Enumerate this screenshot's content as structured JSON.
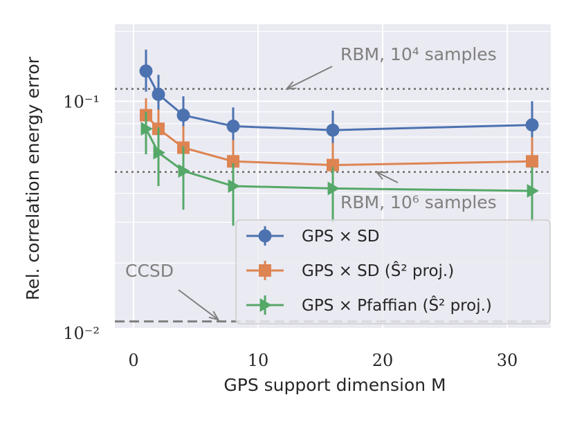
{
  "chart_data": {
    "type": "line",
    "xlabel": "GPS support dimension M",
    "ylabel": "Rel. correlation energy error",
    "xlim": [
      -1.5,
      33.5
    ],
    "ylim": [
      0.0105,
      0.215
    ],
    "yscale": "log",
    "xticks": [
      {
        "value": 0,
        "label": "0"
      },
      {
        "value": 10,
        "label": "10"
      },
      {
        "value": 20,
        "label": "20"
      },
      {
        "value": 30,
        "label": "30"
      }
    ],
    "yticks": [
      {
        "value": 0.1,
        "label": "10⁻¹"
      },
      {
        "value": 0.01,
        "label": "10⁻²"
      }
    ],
    "grid": true,
    "series": [
      {
        "name": "GPS × SD",
        "color": "#4c72b0",
        "marker": "circle",
        "x": [
          1,
          2,
          4,
          8,
          16,
          32
        ],
        "y": [
          0.135,
          0.107,
          0.087,
          0.078,
          0.075,
          0.079
        ],
        "yerr_low": [
          0.11,
          0.085,
          0.068,
          0.062,
          0.06,
          0.061
        ],
        "yerr_high": [
          0.167,
          0.13,
          0.105,
          0.094,
          0.091,
          0.1
        ]
      },
      {
        "name": "GPS × SD (Ŝ² proj.)",
        "color": "#dd8452",
        "marker": "square",
        "x": [
          1,
          2,
          4,
          8,
          16,
          32
        ],
        "y": [
          0.087,
          0.076,
          0.063,
          0.055,
          0.053,
          0.055
        ],
        "yerr_low": [
          0.066,
          0.058,
          0.049,
          0.042,
          0.04,
          0.041
        ],
        "yerr_high": [
          0.103,
          0.092,
          0.078,
          0.068,
          0.066,
          0.07
        ]
      },
      {
        "name": "GPS × Pfaffian (Ŝ² proj.)",
        "color": "#55a868",
        "marker": "triangle-right",
        "x": [
          1,
          2,
          4,
          8,
          16,
          32
        ],
        "y": [
          0.076,
          0.06,
          0.05,
          0.043,
          0.042,
          0.041
        ],
        "yerr_low": [
          0.059,
          0.043,
          0.034,
          0.029,
          0.03,
          0.03
        ],
        "yerr_high": [
          0.09,
          0.077,
          0.064,
          0.054,
          0.052,
          0.052
        ]
      }
    ],
    "reference_lines": [
      {
        "name": "RBM 1e4",
        "y": 0.113,
        "style": "dotted",
        "color": "#7f7f7f"
      },
      {
        "name": "RBM 1e6",
        "y": 0.0495,
        "style": "dotted",
        "color": "#7f7f7f"
      },
      {
        "name": "CCSD",
        "y": 0.0112,
        "style": "dashed",
        "color": "#7f7f7f"
      }
    ],
    "annotations": [
      {
        "id": "rbm4",
        "text": "RBM, 10⁴ samples",
        "x": 22,
        "y": 0.125,
        "arrow_to": {
          "x": 12.3,
          "y": 0.113
        }
      },
      {
        "id": "rbm6",
        "text": "RBM, 10⁶ samples",
        "x": 22,
        "y": 0.038,
        "arrow_to": {
          "x": 19.5,
          "y": 0.0495
        }
      },
      {
        "id": "ccsd",
        "text": "CCSD",
        "x": 2.5,
        "y": 0.0155,
        "arrow_to": {
          "x": 6.8,
          "y": 0.0114
        }
      }
    ],
    "legend": {
      "position": "lower-right"
    }
  }
}
